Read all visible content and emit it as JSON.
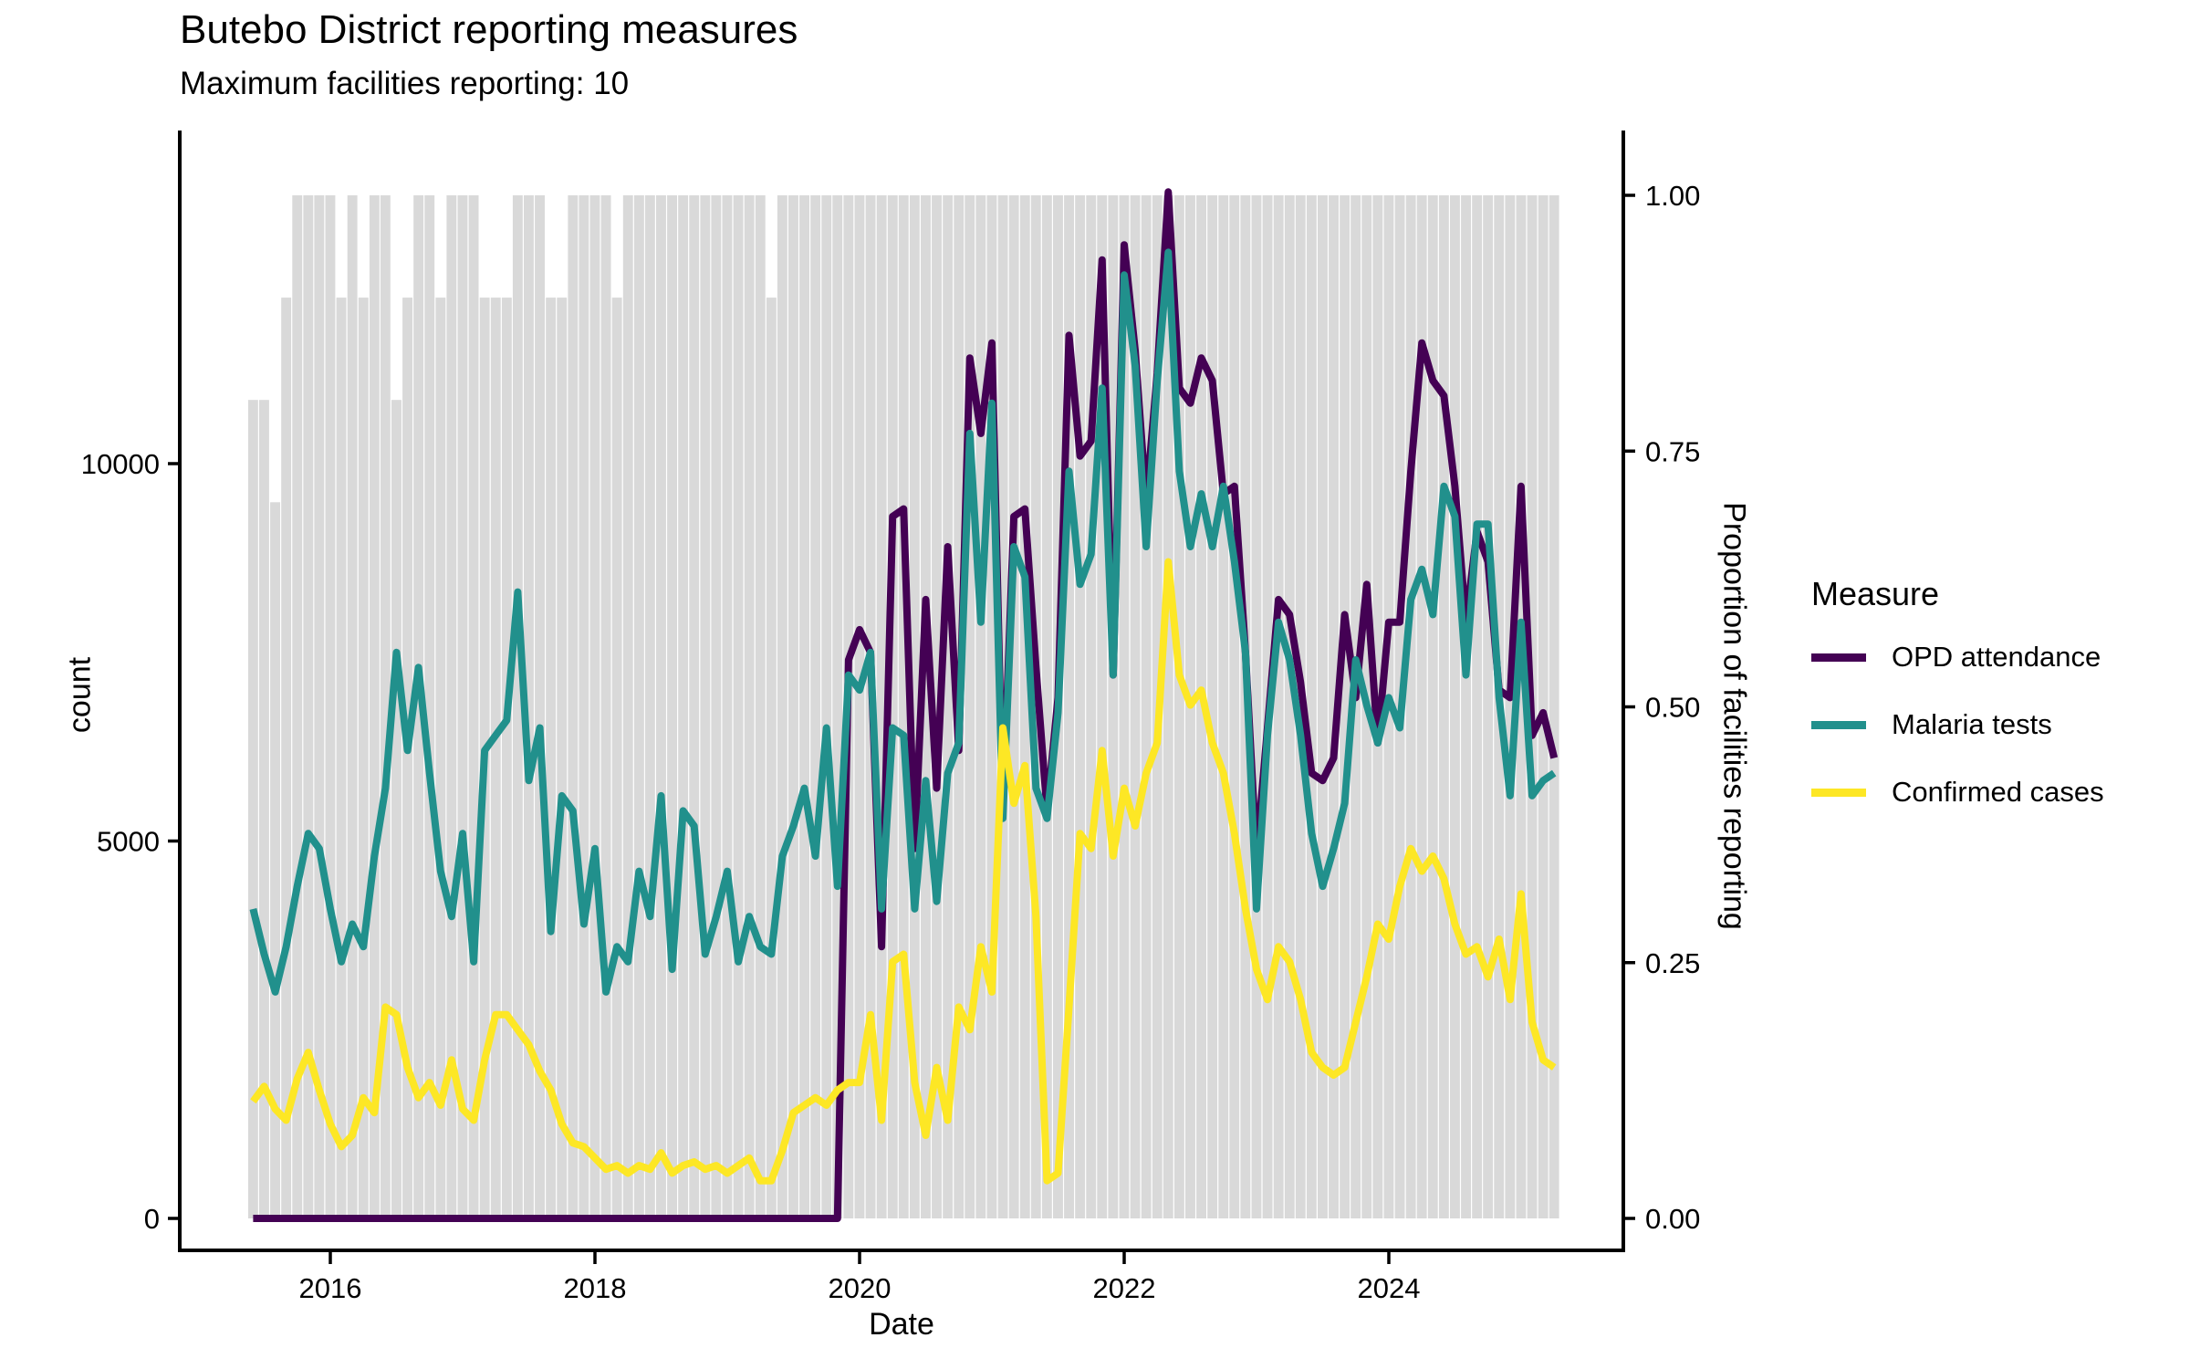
{
  "title": "Butebo District reporting measures",
  "subtitle": "Maximum facilities reporting: 10",
  "max_facilities": 10,
  "legend": {
    "title": "Measure",
    "items": [
      {
        "label": "OPD attendance",
        "color": "#440154"
      },
      {
        "label": "Malaria tests",
        "color": "#21908C"
      },
      {
        "label": "Confirmed cases",
        "color": "#FDE725"
      }
    ]
  },
  "colors": {
    "opd": "#440154",
    "malaria": "#21908C",
    "confirmed": "#FDE725",
    "bars": "#D9D9D9",
    "axis": "#000000"
  },
  "chart_data": {
    "type": "line",
    "title": "Butebo District reporting measures",
    "subtitle": "Maximum facilities reporting: 10",
    "xlabel": "Date",
    "ylabel": "count",
    "y2label": "Proportion of facilities reporting",
    "ylim": [
      0,
      14300
    ],
    "y2lim": [
      0,
      1.0
    ],
    "x_ticks": [
      "2016",
      "2018",
      "2020",
      "2022",
      "2024"
    ],
    "y_ticks": [
      0,
      5000,
      10000
    ],
    "y2_ticks": [
      "0.00",
      "0.25",
      "0.50",
      "0.75",
      "1.00"
    ],
    "grid": false,
    "legend_position": "right",
    "months": [
      "2015-06",
      "2015-07",
      "2015-08",
      "2015-09",
      "2015-10",
      "2015-11",
      "2015-12",
      "2016-01",
      "2016-02",
      "2016-03",
      "2016-04",
      "2016-05",
      "2016-06",
      "2016-07",
      "2016-08",
      "2016-09",
      "2016-10",
      "2016-11",
      "2016-12",
      "2017-01",
      "2017-02",
      "2017-03",
      "2017-04",
      "2017-05",
      "2017-06",
      "2017-07",
      "2017-08",
      "2017-09",
      "2017-10",
      "2017-11",
      "2017-12",
      "2018-01",
      "2018-02",
      "2018-03",
      "2018-04",
      "2018-05",
      "2018-06",
      "2018-07",
      "2018-08",
      "2018-09",
      "2018-10",
      "2018-11",
      "2018-12",
      "2019-01",
      "2019-02",
      "2019-03",
      "2019-04",
      "2019-05",
      "2019-06",
      "2019-07",
      "2019-08",
      "2019-09",
      "2019-10",
      "2019-11",
      "2019-12",
      "2020-01",
      "2020-02",
      "2020-03",
      "2020-04",
      "2020-05",
      "2020-06",
      "2020-07",
      "2020-08",
      "2020-09",
      "2020-10",
      "2020-11",
      "2020-12",
      "2021-01",
      "2021-02",
      "2021-03",
      "2021-04",
      "2021-05",
      "2021-06",
      "2021-07",
      "2021-08",
      "2021-09",
      "2021-10",
      "2021-11",
      "2021-12",
      "2022-01",
      "2022-02",
      "2022-03",
      "2022-04",
      "2022-05",
      "2022-06",
      "2022-07",
      "2022-08",
      "2022-09",
      "2022-10",
      "2022-11",
      "2022-12",
      "2023-01",
      "2023-02",
      "2023-03",
      "2023-04",
      "2023-05",
      "2023-06",
      "2023-07",
      "2023-08",
      "2023-09",
      "2023-10",
      "2023-11",
      "2023-12",
      "2024-01",
      "2024-02",
      "2024-03",
      "2024-04",
      "2024-05",
      "2024-06",
      "2024-07",
      "2024-08",
      "2024-09",
      "2024-10",
      "2024-11",
      "2024-12",
      "2025-01",
      "2025-02",
      "2025-03",
      "2025-04"
    ],
    "proportion_reporting": [
      0.8,
      0.8,
      0.7,
      0.9,
      1,
      1,
      1,
      1,
      0.9,
      1,
      0.9,
      1,
      1,
      0.8,
      0.9,
      1,
      1,
      0.9,
      1,
      1,
      1,
      0.9,
      0.9,
      0.9,
      1,
      1,
      1,
      0.9,
      0.9,
      1,
      1,
      1,
      1,
      0.9,
      1,
      1,
      1,
      1,
      1,
      1,
      1,
      1,
      1,
      1,
      1,
      1,
      1,
      0.9,
      1,
      1,
      1,
      1,
      1,
      1,
      1,
      1,
      1,
      1,
      1,
      1,
      1,
      1,
      1,
      1,
      1,
      1,
      1,
      1,
      1,
      1,
      1,
      1,
      1,
      1,
      1,
      1,
      1,
      1,
      1,
      1,
      1,
      1,
      1,
      1,
      1,
      1,
      1,
      1,
      1,
      1,
      1,
      1,
      1,
      1,
      1,
      1,
      1,
      1,
      1,
      1,
      1,
      1,
      1,
      1,
      1,
      1,
      1,
      1,
      1,
      1,
      1,
      1,
      1,
      1,
      1,
      1,
      1,
      1,
      1
    ],
    "series": [
      {
        "name": "OPD attendance",
        "values": [
          0,
          0,
          0,
          0,
          0,
          0,
          0,
          0,
          0,
          0,
          0,
          0,
          0,
          0,
          0,
          0,
          0,
          0,
          0,
          0,
          0,
          0,
          0,
          0,
          0,
          0,
          0,
          0,
          0,
          0,
          0,
          0,
          0,
          0,
          0,
          0,
          0,
          0,
          0,
          0,
          0,
          0,
          0,
          0,
          0,
          0,
          0,
          0,
          0,
          0,
          0,
          0,
          0,
          0,
          7400,
          7800,
          7500,
          3600,
          9300,
          9400,
          4900,
          8200,
          5700,
          8900,
          6200,
          11400,
          10400,
          11600,
          5400,
          9300,
          9400,
          7300,
          5400,
          6900,
          11700,
          10100,
          10300,
          12700,
          7200,
          12900,
          11500,
          9500,
          11200,
          13600,
          11000,
          10800,
          11400,
          11100,
          9600,
          9700,
          7500,
          4800,
          6500,
          8200,
          8000,
          7100,
          5900,
          5800,
          6100,
          8000,
          6900,
          8400,
          6300,
          7900,
          7900,
          9900,
          11600,
          11100,
          10900,
          9700,
          7900,
          9100,
          8700,
          7000,
          6900,
          9700,
          6400,
          6700,
          6100
        ]
      },
      {
        "name": "Malaria tests",
        "values": [
          4100,
          3500,
          3000,
          3600,
          4400,
          5100,
          4900,
          4100,
          3400,
          3900,
          3600,
          4800,
          5700,
          7500,
          6200,
          7300,
          5900,
          4600,
          4000,
          5100,
          3400,
          6200,
          6400,
          6600,
          8300,
          5800,
          6500,
          3800,
          5600,
          5400,
          3900,
          4900,
          3000,
          3600,
          3400,
          4600,
          4000,
          5600,
          3300,
          5400,
          5200,
          3500,
          4000,
          4600,
          3400,
          4000,
          3600,
          3500,
          4800,
          5200,
          5700,
          4800,
          6500,
          4400,
          7200,
          7000,
          7500,
          4100,
          6500,
          6400,
          4100,
          5800,
          4200,
          5900,
          6300,
          10400,
          7900,
          10800,
          5300,
          8900,
          8500,
          5700,
          5300,
          6700,
          9900,
          8400,
          8800,
          11000,
          7200,
          12500,
          11300,
          8900,
          11100,
          12800,
          9900,
          8900,
          9600,
          8900,
          9700,
          8700,
          7500,
          4100,
          6400,
          7900,
          7400,
          6400,
          5100,
          4400,
          4900,
          5500,
          7400,
          6800,
          6300,
          6900,
          6500,
          8200,
          8600,
          8000,
          9700,
          9300,
          7200,
          9200,
          9200,
          6900,
          5600,
          7900,
          5600,
          5800,
          5900
        ]
      },
      {
        "name": "Confirmed cases",
        "values": [
          1550,
          1750,
          1450,
          1300,
          1850,
          2200,
          1700,
          1250,
          950,
          1100,
          1600,
          1400,
          2800,
          2700,
          2000,
          1600,
          1800,
          1500,
          2100,
          1450,
          1300,
          2100,
          2700,
          2700,
          2500,
          2300,
          1950,
          1700,
          1250,
          1000,
          950,
          800,
          650,
          700,
          600,
          700,
          650,
          870,
          600,
          700,
          750,
          650,
          700,
          600,
          700,
          800,
          500,
          500,
          900,
          1400,
          1500,
          1600,
          1500,
          1700,
          1800,
          1800,
          2700,
          1300,
          3400,
          3500,
          1800,
          1100,
          2000,
          1300,
          2800,
          2500,
          3600,
          3000,
          6500,
          5500,
          6000,
          4000,
          500,
          600,
          2800,
          5100,
          4900,
          6200,
          4800,
          5700,
          5200,
          5900,
          6300,
          8700,
          7200,
          6800,
          7000,
          6300,
          5900,
          5100,
          4100,
          3300,
          2900,
          3600,
          3400,
          2900,
          2200,
          2000,
          1900,
          2000,
          2600,
          3200,
          3900,
          3700,
          4400,
          4900,
          4600,
          4800,
          4500,
          3900,
          3500,
          3600,
          3200,
          3700,
          2900,
          4300,
          2600,
          2100,
          2000
        ]
      }
    ]
  }
}
